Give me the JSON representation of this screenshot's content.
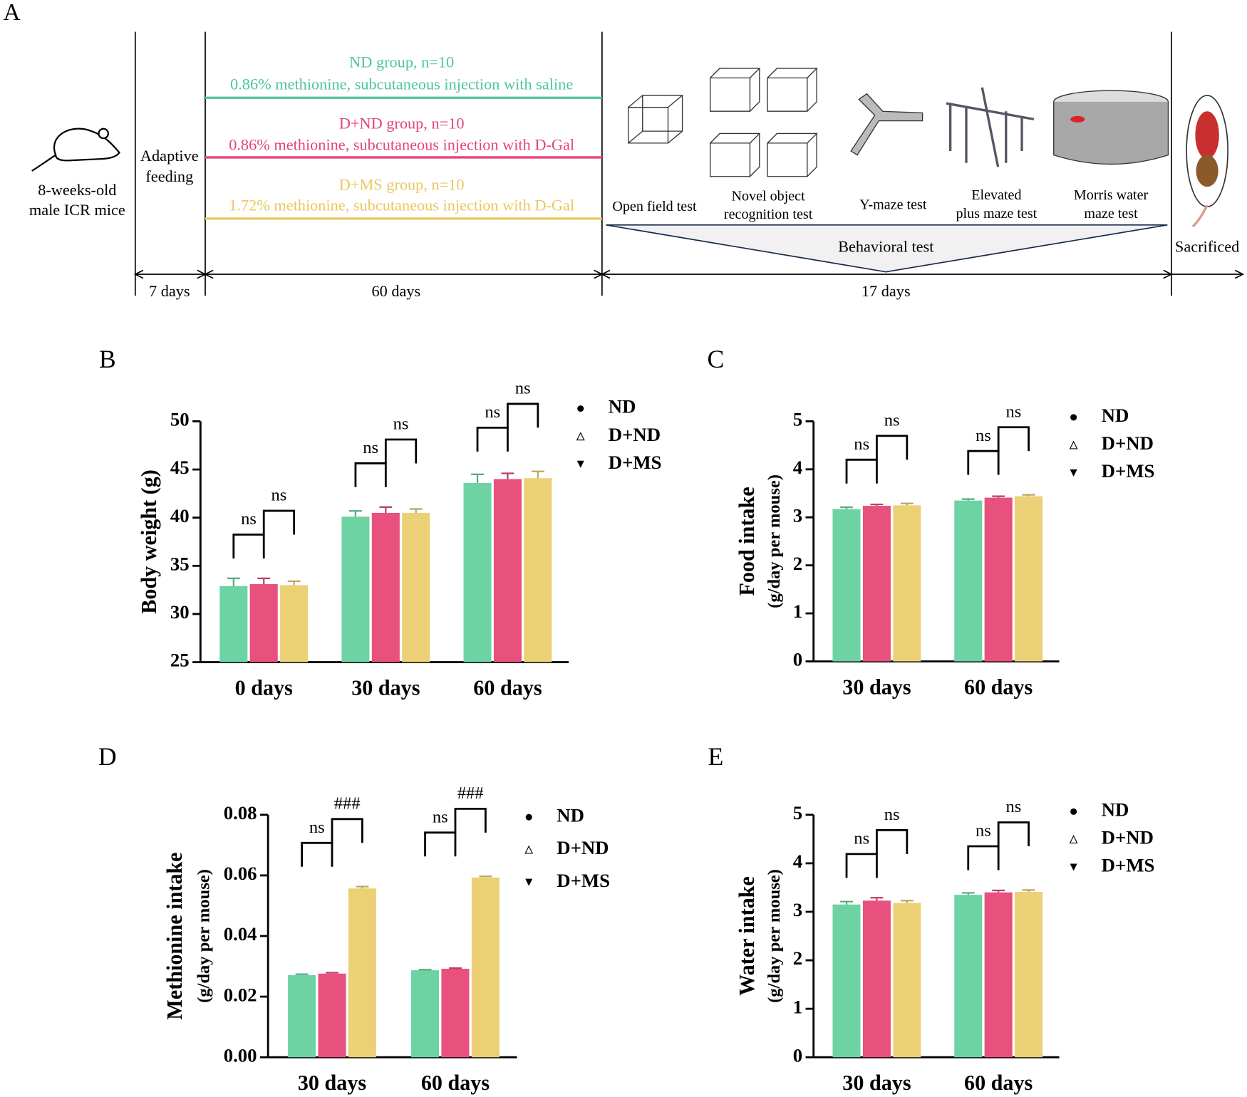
{
  "diagram": {
    "label": "A",
    "subject": [
      "8-weeks-old",
      "male ICR mice"
    ],
    "phase1": [
      "Adaptive",
      "feeding"
    ],
    "groups": [
      {
        "name": "ND group, n=10",
        "description": "0.86% methionine, subcutaneous injection with saline",
        "color": "#4ec795"
      },
      {
        "name": "D+ND group, n=10",
        "description": "0.86% methionine, subcutaneous injection with D-Gal",
        "color": "#e5437a"
      },
      {
        "name": "D+MS group, n=10",
        "description": "1.72% methionine, subcutaneous injection with D-Gal",
        "color": "#e9c85e"
      }
    ],
    "tests": [
      [
        "Open field test"
      ],
      [
        "Novel object",
        "recognition test"
      ],
      [
        "Y-maze test"
      ],
      [
        "Elevated",
        "plus maze test"
      ],
      [
        "Morris water",
        "maze test"
      ]
    ],
    "behavioral": "Behavioral test",
    "endpoint": "Sacrificed",
    "durations": [
      "7 days",
      "60 days",
      "17 days"
    ]
  },
  "chart_data": [
    {
      "type": "bar",
      "panel": "B",
      "ylabel": [
        "Body weight (g)"
      ],
      "categories": [
        "0 days",
        "30 days",
        "60 days"
      ],
      "series": [
        {
          "name": "ND",
          "color": "#6dd3a3",
          "marker": "circle",
          "values": [
            32.9,
            40.1,
            43.6
          ],
          "errors": [
            0.8,
            0.6,
            0.9
          ]
        },
        {
          "name": "D+ND",
          "color": "#e8507e",
          "marker": "triangle",
          "values": [
            33.1,
            40.5,
            44.0
          ],
          "errors": [
            0.6,
            0.6,
            0.6
          ]
        },
        {
          "name": "D+MS",
          "color": "#ecd076",
          "marker": "triangle-down",
          "values": [
            33.0,
            40.5,
            44.1
          ],
          "errors": [
            0.4,
            0.4,
            0.7
          ]
        }
      ],
      "significance": [
        [
          "ns",
          "ns"
        ],
        [
          "ns",
          "ns"
        ],
        [
          "ns",
          "ns"
        ]
      ],
      "ylim": [
        25,
        50
      ],
      "yticks": [
        25,
        30,
        35,
        40,
        45,
        50
      ]
    },
    {
      "type": "bar",
      "panel": "C",
      "ylabel": [
        "Food intake",
        "(g/day per mouse)"
      ],
      "categories": [
        "30 days",
        "60 days"
      ],
      "series": [
        {
          "name": "ND",
          "color": "#6dd3a3",
          "marker": "circle",
          "values": [
            3.17,
            3.35
          ],
          "errors": [
            0.04,
            0.03
          ]
        },
        {
          "name": "D+ND",
          "color": "#e8507e",
          "marker": "triangle",
          "values": [
            3.24,
            3.41
          ],
          "errors": [
            0.03,
            0.03
          ]
        },
        {
          "name": "D+MS",
          "color": "#ecd076",
          "marker": "triangle-down",
          "values": [
            3.25,
            3.44
          ],
          "errors": [
            0.04,
            0.03
          ]
        }
      ],
      "significance": [
        [
          "ns",
          "ns"
        ],
        [
          "ns",
          "ns"
        ]
      ],
      "ylim": [
        0,
        5
      ],
      "yticks": [
        0,
        1,
        2,
        3,
        4,
        5
      ]
    },
    {
      "type": "bar",
      "panel": "D",
      "ylabel": [
        "Methionine intake",
        "(g/day per mouse)"
      ],
      "categories": [
        "30 days",
        "60 days"
      ],
      "series": [
        {
          "name": "ND",
          "color": "#6dd3a3",
          "marker": "circle",
          "values": [
            0.0271,
            0.0287
          ],
          "errors": [
            0.0003,
            0.0002
          ]
        },
        {
          "name": "D+ND",
          "color": "#e8507e",
          "marker": "triangle",
          "values": [
            0.0276,
            0.0292
          ],
          "errors": [
            0.0003,
            0.0002
          ]
        },
        {
          "name": "D+MS",
          "color": "#ecd076",
          "marker": "triangle-down",
          "values": [
            0.0557,
            0.0593
          ],
          "errors": [
            0.0006,
            0.0004
          ]
        }
      ],
      "significance": [
        [
          "ns",
          "###"
        ],
        [
          "ns",
          "###"
        ]
      ],
      "ylim": [
        0,
        0.08
      ],
      "yticks": [
        {
          "value": 0,
          "label": "0.00"
        },
        0.02,
        0.04,
        0.06,
        0.08
      ]
    },
    {
      "type": "bar",
      "panel": "E",
      "ylabel": [
        "Water intake",
        "(g/day per mouse)"
      ],
      "categories": [
        "30 days",
        "60 days"
      ],
      "series": [
        {
          "name": "ND",
          "color": "#6dd3a3",
          "marker": "circle",
          "values": [
            3.15,
            3.35
          ],
          "errors": [
            0.06,
            0.04
          ]
        },
        {
          "name": "D+ND",
          "color": "#e8507e",
          "marker": "triangle",
          "values": [
            3.23,
            3.4
          ],
          "errors": [
            0.06,
            0.04
          ]
        },
        {
          "name": "D+MS",
          "color": "#ecd076",
          "marker": "triangle-down",
          "values": [
            3.18,
            3.41
          ],
          "errors": [
            0.05,
            0.04
          ]
        }
      ],
      "significance": [
        [
          "ns",
          "ns"
        ],
        [
          "ns",
          "ns"
        ]
      ],
      "ylim": [
        0,
        5
      ],
      "yticks": [
        0,
        1,
        2,
        3,
        4,
        5
      ]
    }
  ]
}
